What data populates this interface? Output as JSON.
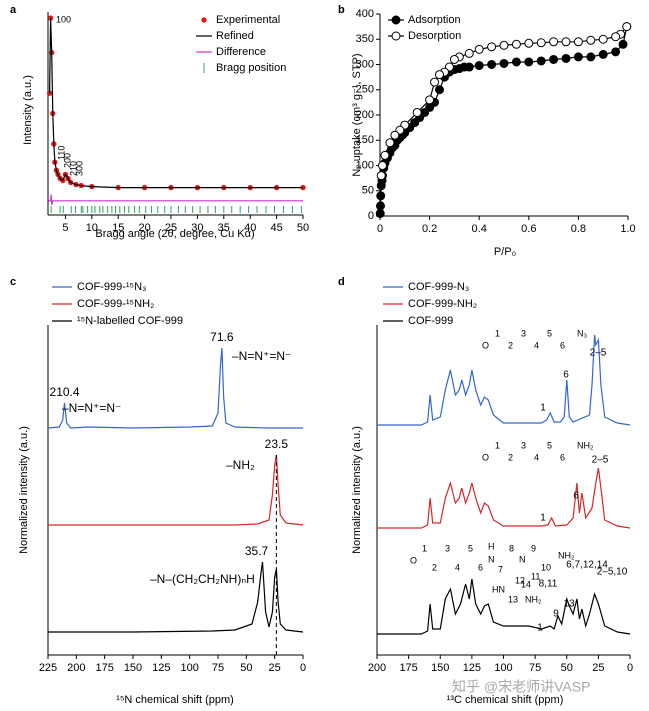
{
  "chart_data": [
    {
      "type": "line",
      "panel": "a",
      "xlabel": "Bragg angle (2θ, degree, Cu Kα)",
      "ylabel": "Intensity (a.u.)",
      "xlim": [
        1.7,
        50
      ],
      "xticks": [
        5,
        10,
        15,
        20,
        25,
        30,
        35,
        40,
        45,
        50
      ],
      "ylim": [
        0,
        100
      ],
      "annotations": [
        "100",
        "110",
        "200",
        "210",
        "300"
      ],
      "series": [
        {
          "name": "Experimental",
          "color": "#e31a1c",
          "marker": "dot",
          "x": [
            2.0,
            2.2,
            2.4,
            2.6,
            2.8,
            3,
            3.3,
            3.6,
            4,
            4.5,
            5,
            5.5,
            6,
            7,
            8,
            10,
            15,
            20,
            25,
            30,
            35,
            40,
            45,
            50
          ],
          "values": [
            60,
            97,
            80,
            50,
            35,
            26,
            22,
            20,
            18,
            17,
            20,
            18,
            16,
            15,
            14.5,
            14,
            13.5,
            13.5,
            13.5,
            13.5,
            13.5,
            13.5,
            13.5,
            13.5
          ]
        },
        {
          "name": "Refined",
          "color": "#000000",
          "x": [
            2.0,
            2.2,
            2.4,
            2.6,
            2.8,
            3,
            3.3,
            3.6,
            4,
            4.5,
            5,
            5.5,
            6,
            7,
            8,
            10,
            15,
            20,
            25,
            30,
            35,
            40,
            45,
            50
          ],
          "values": [
            60,
            97,
            80,
            50,
            35,
            26,
            22,
            20,
            18,
            17,
            20,
            18,
            16,
            15,
            14.5,
            14,
            13.5,
            13.5,
            13.5,
            13.5,
            13.5,
            13.5,
            13.5,
            13.5
          ]
        },
        {
          "name": "Difference",
          "color": "#cc33cc",
          "x": [
            1.8,
            2.2,
            2.3,
            2.4,
            2.6,
            3,
            5,
            10,
            20,
            30,
            40,
            50
          ],
          "values": [
            7,
            7,
            10,
            5,
            7,
            7,
            7,
            7,
            7,
            7,
            7,
            7
          ]
        },
        {
          "name": "Bragg position",
          "color": "#2ca25f",
          "style": "ticks",
          "positions": [
            2.3,
            4.0,
            4.6,
            6.1,
            6.9,
            8.0,
            8.3,
            9.2,
            10.0,
            10.6,
            11.5,
            12.1,
            13.0,
            13.8,
            14.5,
            15.3,
            16.2,
            17.0,
            18.1,
            19.0,
            20.2,
            21.3,
            22.5,
            23.8,
            25.0,
            26.4,
            27.7,
            29.1,
            30.5,
            32.0,
            33.4,
            35.0,
            36.5,
            38.1,
            39.7,
            41.3,
            43.0,
            44.6,
            46.3,
            48.0,
            49.7
          ]
        }
      ]
    },
    {
      "type": "line",
      "panel": "b",
      "xlabel": "P/P₀",
      "ylabel": "N₂ uptake (cm³ g⁻¹, STP)",
      "xlim": [
        0,
        1
      ],
      "xticks": [
        0,
        0.2,
        0.4,
        0.6,
        0.8,
        {
          "value": 1,
          "label": "1.0"
        }
      ],
      "ylim": [
        0,
        400
      ],
      "yticks": [
        0,
        50,
        100,
        150,
        200,
        250,
        300,
        350,
        400
      ],
      "series": [
        {
          "name": "Adsorption",
          "color": "#000000",
          "marker": "filled",
          "x": [
            0.001,
            0.002,
            0.003,
            0.005,
            0.008,
            0.01,
            0.015,
            0.02,
            0.03,
            0.04,
            0.05,
            0.06,
            0.07,
            0.08,
            0.09,
            0.1,
            0.12,
            0.14,
            0.16,
            0.18,
            0.2,
            0.22,
            0.24,
            0.26,
            0.28,
            0.3,
            0.32,
            0.34,
            0.36,
            0.4,
            0.45,
            0.5,
            0.55,
            0.6,
            0.65,
            0.7,
            0.75,
            0.8,
            0.85,
            0.9,
            0.95,
            0.98,
            0.995
          ],
          "values": [
            5,
            20,
            40,
            60,
            70,
            80,
            95,
            105,
            115,
            125,
            135,
            140,
            150,
            155,
            160,
            165,
            175,
            185,
            195,
            205,
            215,
            225,
            250,
            275,
            285,
            290,
            292,
            295,
            295,
            298,
            300,
            302,
            305,
            305,
            307,
            310,
            312,
            315,
            315,
            320,
            325,
            340,
            375
          ]
        },
        {
          "name": "Desorption",
          "color": "#000000",
          "marker": "open",
          "x": [
            0.995,
            0.97,
            0.95,
            0.9,
            0.85,
            0.8,
            0.75,
            0.7,
            0.65,
            0.6,
            0.55,
            0.5,
            0.45,
            0.4,
            0.36,
            0.32,
            0.3,
            0.28,
            0.26,
            0.24,
            0.22,
            0.2,
            0.15,
            0.1,
            0.08,
            0.06,
            0.04,
            0.02,
            0.01,
            0.005
          ],
          "values": [
            375,
            360,
            355,
            350,
            348,
            345,
            345,
            345,
            343,
            342,
            340,
            338,
            335,
            330,
            322,
            315,
            310,
            295,
            285,
            280,
            265,
            230,
            205,
            180,
            170,
            160,
            145,
            120,
            100,
            80
          ]
        }
      ]
    },
    {
      "type": "spectrum",
      "panel": "c",
      "xlabel": "¹⁵N chemical shift (ppm)",
      "ylabel": "Normalized intensity (a.u.)",
      "xlim": [
        225,
        0
      ],
      "xticks": [
        225,
        200,
        175,
        150,
        125,
        100,
        75,
        50,
        25,
        0
      ],
      "annotations": [
        "–N=N⁺=N⁻",
        "–N=N⁺=N⁻",
        "–NH₂",
        "–N–(CH₂CH₂NH)ₙH"
      ],
      "series": [
        {
          "name": "COF-999-¹⁵N₃",
          "color": "#3366cc",
          "x": [
            225,
            215,
            212,
            210.4,
            208.5,
            205,
            190,
            150,
            100,
            80,
            75,
            73,
            71.6,
            70,
            68,
            60,
            30,
            0
          ],
          "values": [
            0,
            1,
            8,
            25,
            5,
            0,
            1,
            0,
            1,
            2,
            15,
            60,
            80,
            30,
            5,
            1,
            0,
            0
          ],
          "peaks": [
            210.4,
            71.6
          ]
        },
        {
          "name": "COF-999-¹⁵NH₂",
          "color": "#d62728",
          "x": [
            225,
            150,
            60,
            40,
            30,
            27,
            25,
            23.5,
            22,
            20,
            15,
            0
          ],
          "values": [
            0,
            0,
            0,
            1,
            5,
            30,
            60,
            70,
            40,
            10,
            2,
            0
          ],
          "peaks": [
            23.5
          ]
        },
        {
          "name": "¹⁵N-labelled COF-999",
          "color": "#000000",
          "x": [
            225,
            150,
            80,
            60,
            45,
            40,
            37,
            35.7,
            33,
            30,
            27,
            25,
            23.5,
            22,
            20,
            15,
            0
          ],
          "values": [
            0,
            0,
            1,
            2,
            8,
            30,
            60,
            70,
            20,
            5,
            20,
            55,
            63,
            30,
            8,
            2,
            0
          ],
          "peaks": [
            35.7
          ]
        }
      ]
    },
    {
      "type": "spectrum",
      "panel": "d",
      "xlabel": "¹³C chemical shift (ppm)",
      "ylabel": "Normalized intensity (a.u.)",
      "xlim": [
        200,
        0
      ],
      "xticks": [
        200,
        175,
        150,
        125,
        100,
        75,
        50,
        25,
        0
      ],
      "series": [
        {
          "name": "COF-999-N₃",
          "color": "#3366cc",
          "x": [
            200,
            165,
            160,
            158,
            156,
            150,
            146,
            142,
            138,
            135,
            133,
            130,
            127,
            125,
            122,
            118,
            115,
            112,
            108,
            100,
            70,
            66,
            63,
            60,
            55,
            52,
            50,
            48,
            45,
            32,
            30,
            28,
            27,
            25,
            23,
            20,
            10,
            0
          ],
          "values": [
            0,
            0,
            3,
            30,
            5,
            8,
            35,
            55,
            30,
            35,
            45,
            30,
            40,
            55,
            35,
            20,
            28,
            25,
            10,
            2,
            2,
            5,
            12,
            3,
            3,
            8,
            45,
            8,
            3,
            10,
            40,
            90,
            80,
            85,
            40,
            8,
            2,
            0
          ],
          "labels": [
            "1",
            "6",
            "2–5"
          ],
          "structure": [
            "O",
            "1",
            "2",
            "3",
            "4",
            "5",
            "6",
            "N₃"
          ]
        },
        {
          "name": "COF-999-NH₂",
          "color": "#d62728",
          "x": [
            200,
            165,
            160,
            158,
            156,
            150,
            146,
            142,
            138,
            135,
            133,
            130,
            127,
            125,
            122,
            118,
            115,
            112,
            108,
            100,
            70,
            65,
            62,
            59,
            50,
            45,
            42,
            40,
            38,
            35,
            30,
            27,
            25,
            23,
            20,
            10,
            0
          ],
          "values": [
            0,
            0,
            3,
            30,
            5,
            5,
            30,
            45,
            25,
            30,
            40,
            25,
            35,
            45,
            30,
            15,
            25,
            22,
            8,
            2,
            2,
            3,
            10,
            2,
            3,
            10,
            45,
            15,
            35,
            10,
            20,
            45,
            60,
            40,
            8,
            2,
            0
          ],
          "labels": [
            "1",
            "6",
            "2–5"
          ],
          "structure": [
            "O",
            "1",
            "2",
            "3",
            "4",
            "5",
            "6",
            "NH₂"
          ]
        },
        {
          "name": "COF-999",
          "color": "#000000",
          "x": [
            200,
            165,
            160,
            158,
            156,
            150,
            146,
            142,
            138,
            134,
            130,
            127,
            125,
            122,
            118,
            115,
            112,
            108,
            100,
            80,
            70,
            63,
            60,
            57,
            54,
            50,
            48,
            45,
            42,
            40,
            38,
            35,
            32,
            28,
            25,
            20,
            10,
            0
          ],
          "values": [
            0,
            0,
            3,
            30,
            5,
            5,
            35,
            45,
            20,
            30,
            50,
            35,
            55,
            30,
            20,
            28,
            30,
            12,
            8,
            8,
            5,
            8,
            5,
            18,
            10,
            35,
            28,
            20,
            35,
            15,
            25,
            8,
            20,
            40,
            30,
            8,
            2,
            0
          ],
          "labels": [
            "1",
            "9",
            "8,11",
            "13",
            "6,7,12,14",
            "2–5,10"
          ],
          "structure": [
            "O",
            "1",
            "2",
            "3",
            "4",
            "5",
            "6",
            "H",
            "N",
            "7",
            "8",
            "N",
            "9",
            "10",
            "NH₂",
            "11",
            "12",
            "HN",
            "13",
            "14",
            "NH₂"
          ]
        }
      ]
    }
  ],
  "watermark": "知乎 @宋老师讲VASP"
}
